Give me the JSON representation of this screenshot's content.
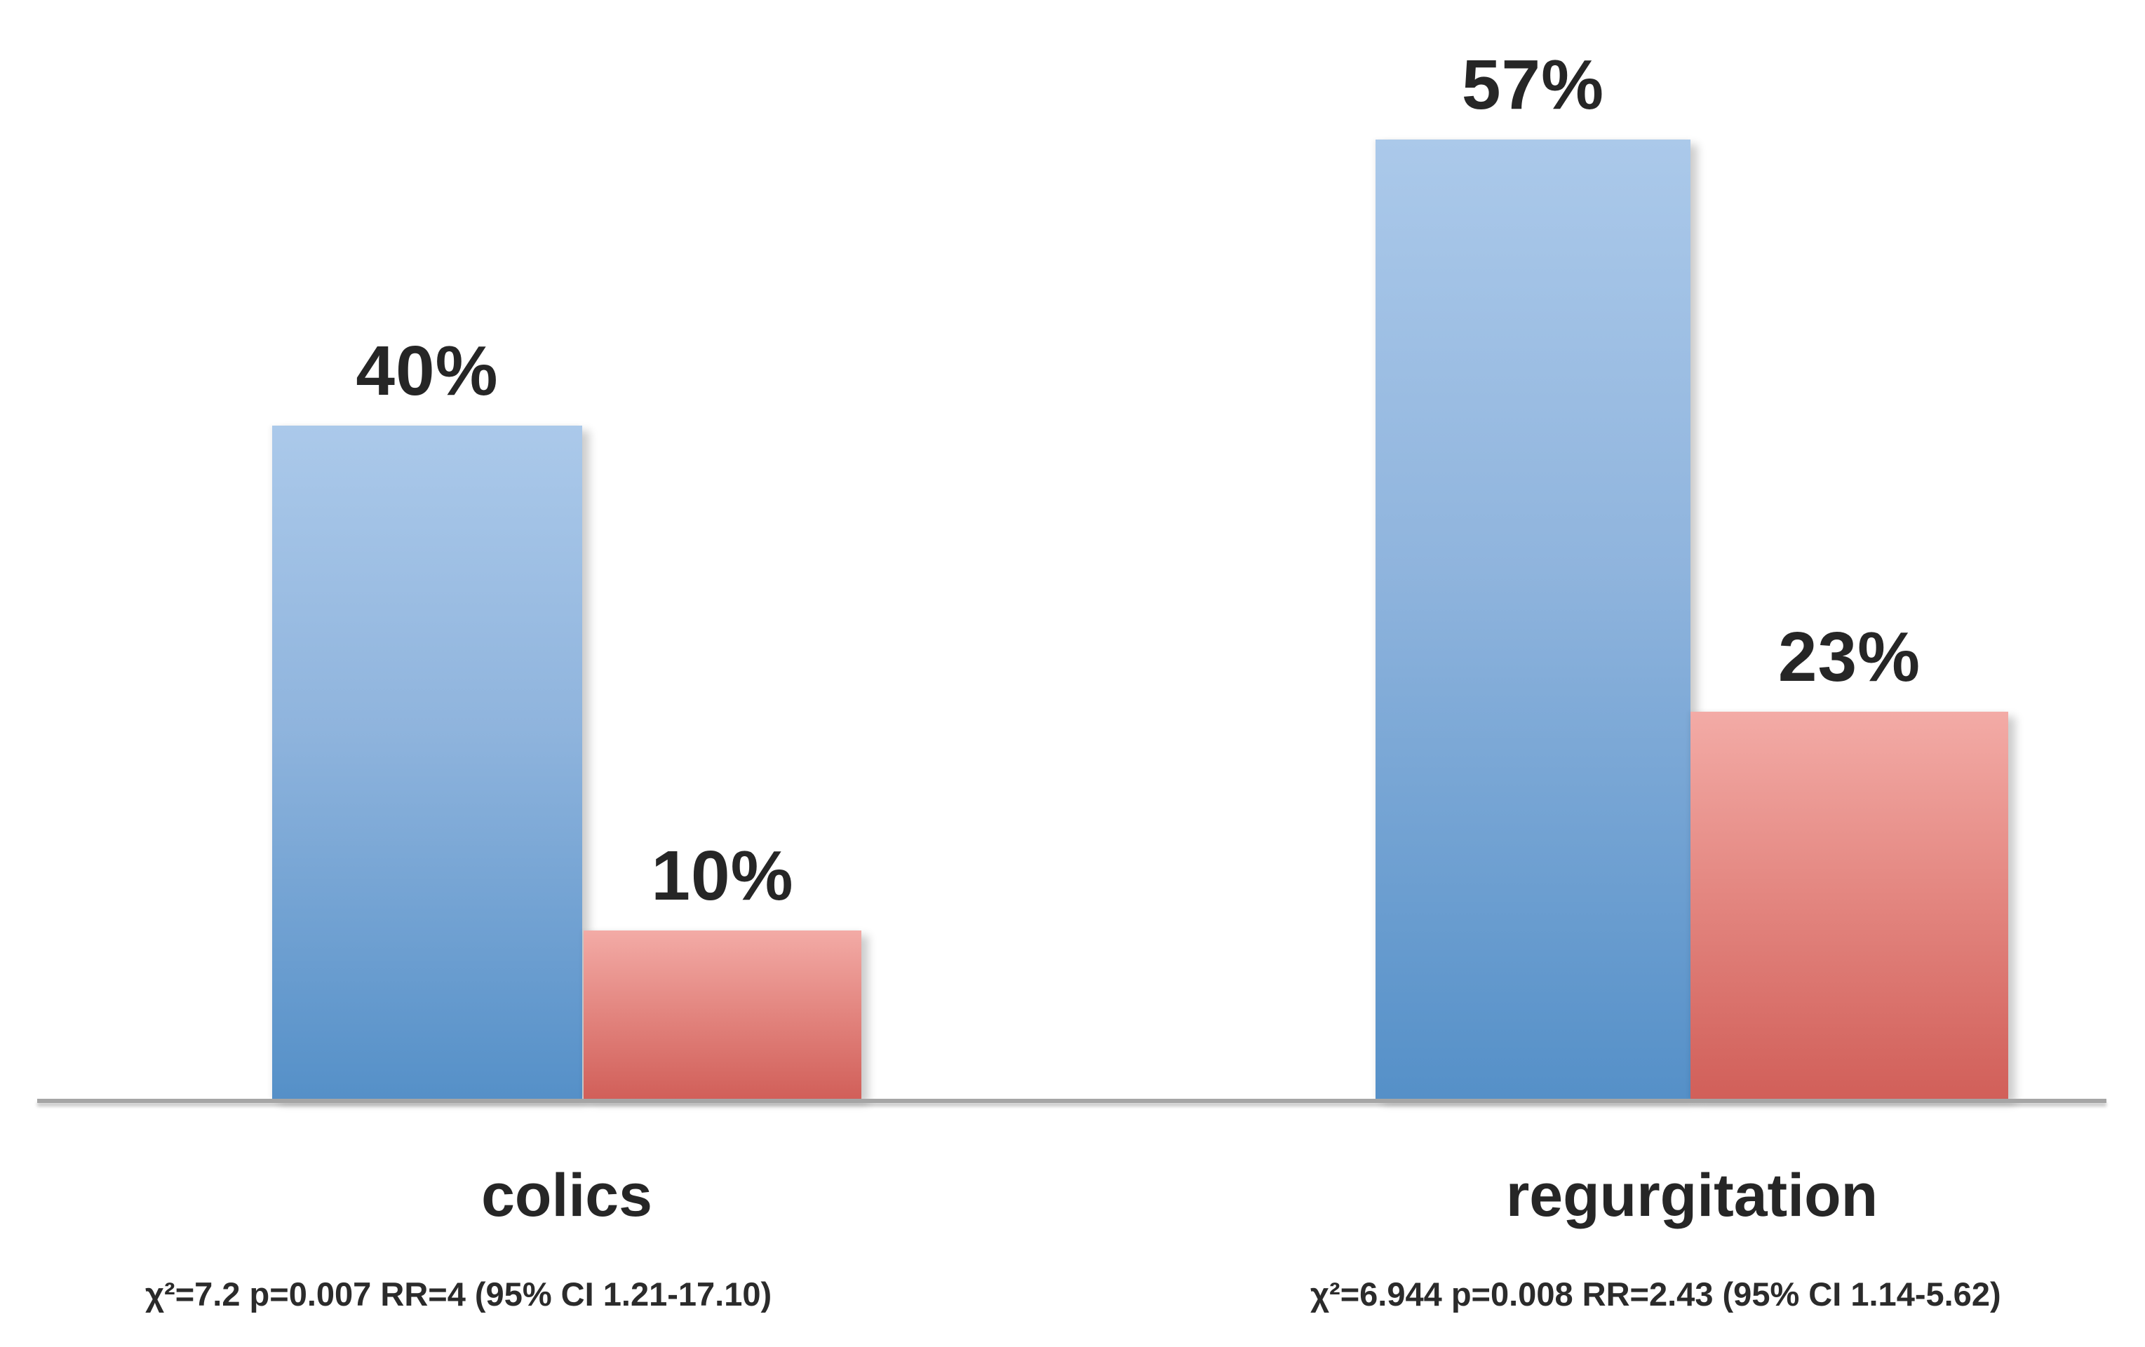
{
  "chart_data": {
    "type": "bar",
    "title": "",
    "categories": [
      "colics",
      "regurgitation"
    ],
    "series": [
      {
        "name": "blue",
        "values": [
          40,
          57
        ],
        "color_top": "#a8c6e8",
        "color_bottom": "#5590c8"
      },
      {
        "name": "red",
        "values": [
          10,
          23
        ],
        "color_top": "#f2a8a4",
        "color_bottom": "#d15f59"
      }
    ],
    "unit": "%",
    "value_labels": [
      [
        "40%",
        "57%"
      ],
      [
        "10%",
        "23%"
      ]
    ],
    "annotations": [
      "χ²=7.2 p=0.007 RR=4 (95% CI 1.21-17.10)",
      "χ²=6.944 p=0.008 RR=2.43 (95% CI 1.14-5.62)"
    ],
    "ylim": [
      0,
      60
    ],
    "grid": false,
    "legend": null,
    "colors": {
      "axis_line": "#a5a5a5",
      "text": "#262626",
      "background": "#ffffff"
    }
  }
}
